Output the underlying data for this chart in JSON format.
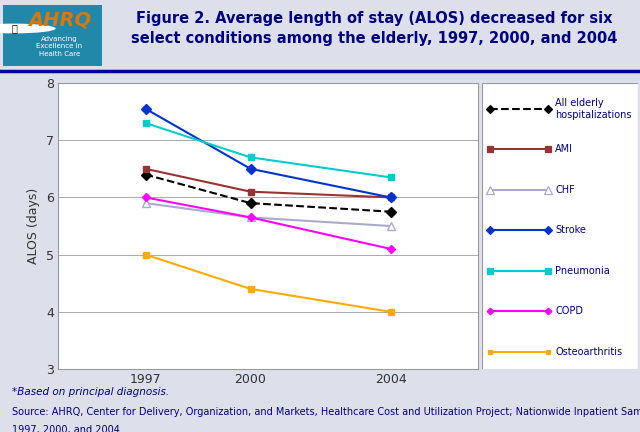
{
  "years": [
    1997,
    2000,
    2004
  ],
  "series": {
    "All elderly hospitalizations": {
      "values": [
        6.4,
        5.9,
        5.75
      ],
      "color": "#000000",
      "linestyle": "--",
      "marker": "D",
      "markersize": 5,
      "markerfacecolor": "#000000"
    },
    "AMI": {
      "values": [
        6.5,
        6.1,
        6.0
      ],
      "color": "#993333",
      "linestyle": "-",
      "marker": "s",
      "markersize": 5,
      "markerfacecolor": "#993333"
    },
    "CHF": {
      "values": [
        5.9,
        5.65,
        5.5
      ],
      "color": "#aaaacc",
      "linestyle": "-",
      "marker": "^",
      "markersize": 6,
      "markerfacecolor": "#ffffff",
      "markeredgecolor": "#aaaacc"
    },
    "Stroke": {
      "values": [
        7.55,
        6.5,
        6.0
      ],
      "color": "#0033cc",
      "linestyle": "-",
      "marker": "D",
      "markersize": 5,
      "markerfacecolor": "#0033cc"
    },
    "Pneumonia": {
      "values": [
        7.3,
        6.7,
        6.35
      ],
      "color": "#00cccc",
      "linestyle": "-",
      "marker": "s",
      "markersize": 5,
      "markerfacecolor": "#00cccc"
    },
    "COPD": {
      "values": [
        6.0,
        5.65,
        5.1
      ],
      "color": "#ff00ff",
      "linestyle": "-",
      "marker": "D",
      "markersize": 4,
      "markerfacecolor": "#ff00ff"
    },
    "Osteoarthritis": {
      "values": [
        5.0,
        4.4,
        4.0
      ],
      "color": "#ffaa00",
      "linestyle": "-",
      "marker": "s",
      "markersize": 4,
      "markerfacecolor": "#ffaa00"
    }
  },
  "ylabel": "ALOS (days)",
  "ylim": [
    3,
    8
  ],
  "yticks": [
    3,
    4,
    5,
    6,
    7,
    8
  ],
  "title_line1": "Figure 2. Average length of stay (ALOS) decreased for six",
  "title_line2": "select conditions among the elderly, 1997, 2000, and 2004",
  "title_color": "#000080",
  "title_fontsize": 10.5,
  "bg_color": "#dde0ea",
  "plot_bg_color": "#ffffff",
  "footer_text1": "*Based on principal diagnosis.",
  "footer_text2": "Source: AHRQ, Center for Delivery, Organization, and Markets, Healthcare Cost and Utilization Project; Nationwide Inpatient Sample,",
  "footer_text3": "1997, 2000, and 2004.",
  "legend_order": [
    "All elderly hospitalizations",
    "AMI",
    "CHF",
    "Stroke",
    "Pneumonia",
    "COPD",
    "Osteoarthritis"
  ],
  "logo_bg": "#2288aa",
  "logo_text_color": "#dd7700",
  "header_line_color": "#000099"
}
